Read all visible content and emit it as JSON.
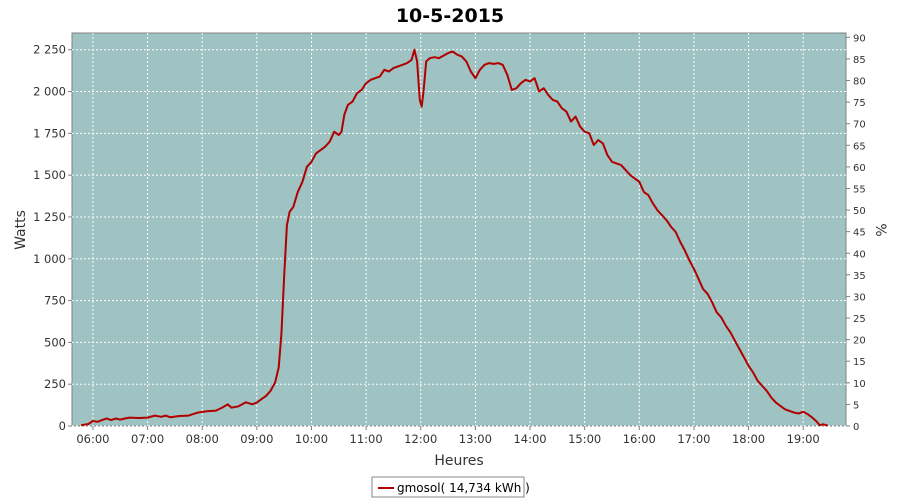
{
  "chart_data": {
    "type": "line",
    "title": "10-5-2015",
    "xlabel": "Heures",
    "ylabel": "Watts",
    "y2label": "%",
    "x_tick_labels": [
      "06:00",
      "07:00",
      "08:00",
      "09:00",
      "10:00",
      "11:00",
      "12:00",
      "13:00",
      "14:00",
      "15:00",
      "16:00",
      "17:00",
      "18:00",
      "19:00"
    ],
    "y_tick_labels": [
      "0",
      "250",
      "500",
      "750",
      "1 000",
      "1 250",
      "1 500",
      "1 750",
      "2 000",
      "2 250"
    ],
    "y_ticks": [
      0,
      250,
      500,
      750,
      1000,
      1250,
      1500,
      1750,
      2000,
      2250
    ],
    "y2_ticks": [
      0,
      5,
      10,
      15,
      20,
      25,
      30,
      35,
      40,
      45,
      50,
      55,
      60,
      65,
      70,
      75,
      80,
      85,
      90
    ],
    "xlim": [
      "05:37",
      "19:47"
    ],
    "ylim": [
      0,
      2350
    ],
    "y2lim": [
      0,
      91
    ],
    "grid": true,
    "legend_position": "bottom",
    "colors": {
      "plot_bg": "#9fc2c2",
      "series": "#b00000",
      "grid": "#ffffff"
    },
    "series": [
      {
        "name": "gmosol( 14,734 kWh )",
        "points": [
          [
            "05:47",
            5
          ],
          [
            "05:55",
            12
          ],
          [
            "06:00",
            30
          ],
          [
            "06:05",
            25
          ],
          [
            "06:10",
            35
          ],
          [
            "06:15",
            45
          ],
          [
            "06:20",
            35
          ],
          [
            "06:25",
            45
          ],
          [
            "06:30",
            38
          ],
          [
            "06:35",
            45
          ],
          [
            "06:40",
            50
          ],
          [
            "06:50",
            48
          ],
          [
            "07:00",
            50
          ],
          [
            "07:08",
            62
          ],
          [
            "07:15",
            55
          ],
          [
            "07:20",
            62
          ],
          [
            "07:25",
            52
          ],
          [
            "07:35",
            60
          ],
          [
            "07:45",
            62
          ],
          [
            "07:55",
            80
          ],
          [
            "08:05",
            88
          ],
          [
            "08:15",
            92
          ],
          [
            "08:22",
            110
          ],
          [
            "08:28",
            130
          ],
          [
            "08:32",
            110
          ],
          [
            "08:40",
            118
          ],
          [
            "08:48",
            142
          ],
          [
            "08:55",
            130
          ],
          [
            "09:00",
            140
          ],
          [
            "09:05",
            160
          ],
          [
            "09:10",
            180
          ],
          [
            "09:15",
            210
          ],
          [
            "09:20",
            260
          ],
          [
            "09:24",
            350
          ],
          [
            "09:27",
            550
          ],
          [
            "09:30",
            900
          ],
          [
            "09:33",
            1200
          ],
          [
            "09:36",
            1280
          ],
          [
            "09:40",
            1310
          ],
          [
            "09:45",
            1400
          ],
          [
            "09:50",
            1460
          ],
          [
            "09:55",
            1550
          ],
          [
            "10:00",
            1580
          ],
          [
            "10:05",
            1630
          ],
          [
            "10:10",
            1650
          ],
          [
            "10:15",
            1670
          ],
          [
            "10:20",
            1700
          ],
          [
            "10:25",
            1760
          ],
          [
            "10:30",
            1740
          ],
          [
            "10:33",
            1760
          ],
          [
            "10:36",
            1860
          ],
          [
            "10:40",
            1920
          ],
          [
            "10:45",
            1940
          ],
          [
            "10:50",
            1990
          ],
          [
            "10:55",
            2010
          ],
          [
            "11:00",
            2050
          ],
          [
            "11:05",
            2070
          ],
          [
            "11:10",
            2080
          ],
          [
            "11:15",
            2090
          ],
          [
            "11:20",
            2130
          ],
          [
            "11:25",
            2120
          ],
          [
            "11:30",
            2140
          ],
          [
            "11:35",
            2150
          ],
          [
            "11:40",
            2160
          ],
          [
            "11:45",
            2170
          ],
          [
            "11:50",
            2190
          ],
          [
            "11:53",
            2250
          ],
          [
            "11:56",
            2180
          ],
          [
            "11:59",
            1950
          ],
          [
            "12:01",
            1910
          ],
          [
            "12:03",
            2000
          ],
          [
            "12:06",
            2180
          ],
          [
            "12:10",
            2200
          ],
          [
            "12:15",
            2205
          ],
          [
            "12:20",
            2200
          ],
          [
            "12:25",
            2215
          ],
          [
            "12:30",
            2230
          ],
          [
            "12:35",
            2240
          ],
          [
            "12:40",
            2220
          ],
          [
            "12:45",
            2210
          ],
          [
            "12:50",
            2180
          ],
          [
            "12:55",
            2120
          ],
          [
            "13:00",
            2080
          ],
          [
            "13:05",
            2130
          ],
          [
            "13:10",
            2160
          ],
          [
            "13:15",
            2170
          ],
          [
            "13:20",
            2165
          ],
          [
            "13:25",
            2170
          ],
          [
            "13:30",
            2160
          ],
          [
            "13:35",
            2100
          ],
          [
            "13:40",
            2010
          ],
          [
            "13:45",
            2020
          ],
          [
            "13:50",
            2050
          ],
          [
            "13:55",
            2070
          ],
          [
            "14:00",
            2060
          ],
          [
            "14:05",
            2080
          ],
          [
            "14:10",
            2000
          ],
          [
            "14:15",
            2020
          ],
          [
            "14:20",
            1980
          ],
          [
            "14:25",
            1950
          ],
          [
            "14:30",
            1940
          ],
          [
            "14:35",
            1900
          ],
          [
            "14:40",
            1880
          ],
          [
            "14:45",
            1820
          ],
          [
            "14:50",
            1850
          ],
          [
            "14:55",
            1790
          ],
          [
            "15:00",
            1760
          ],
          [
            "15:05",
            1750
          ],
          [
            "15:10",
            1680
          ],
          [
            "15:15",
            1710
          ],
          [
            "15:20",
            1690
          ],
          [
            "15:25",
            1620
          ],
          [
            "15:30",
            1580
          ],
          [
            "15:35",
            1570
          ],
          [
            "15:40",
            1560
          ],
          [
            "15:50",
            1500
          ],
          [
            "15:55",
            1480
          ],
          [
            "16:00",
            1460
          ],
          [
            "16:05",
            1400
          ],
          [
            "16:10",
            1380
          ],
          [
            "16:15",
            1330
          ],
          [
            "16:20",
            1290
          ],
          [
            "16:25",
            1260
          ],
          [
            "16:30",
            1230
          ],
          [
            "16:35",
            1190
          ],
          [
            "16:40",
            1160
          ],
          [
            "16:45",
            1100
          ],
          [
            "16:50",
            1050
          ],
          [
            "16:55",
            990
          ],
          [
            "17:00",
            940
          ],
          [
            "17:05",
            880
          ],
          [
            "17:10",
            820
          ],
          [
            "17:15",
            790
          ],
          [
            "17:20",
            740
          ],
          [
            "17:25",
            680
          ],
          [
            "17:30",
            650
          ],
          [
            "17:35",
            600
          ],
          [
            "17:40",
            560
          ],
          [
            "17:45",
            510
          ],
          [
            "17:50",
            460
          ],
          [
            "17:55",
            410
          ],
          [
            "18:00",
            360
          ],
          [
            "18:05",
            320
          ],
          [
            "18:10",
            270
          ],
          [
            "18:15",
            240
          ],
          [
            "18:20",
            210
          ],
          [
            "18:25",
            170
          ],
          [
            "18:30",
            140
          ],
          [
            "18:35",
            120
          ],
          [
            "18:40",
            100
          ],
          [
            "18:45",
            90
          ],
          [
            "18:50",
            80
          ],
          [
            "18:55",
            75
          ],
          [
            "19:00",
            85
          ],
          [
            "19:05",
            70
          ],
          [
            "19:10",
            50
          ],
          [
            "19:15",
            25
          ],
          [
            "19:18",
            5
          ],
          [
            "19:22",
            10
          ],
          [
            "19:27",
            2
          ]
        ]
      }
    ]
  }
}
